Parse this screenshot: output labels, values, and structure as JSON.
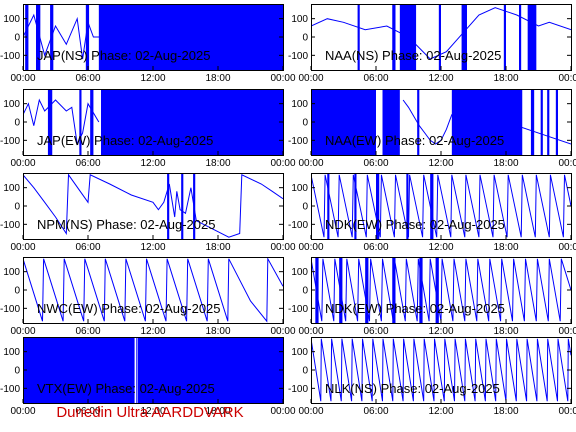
{
  "footer": "Dunedin Ultra AARDDVARK",
  "colors": {
    "trace": "#0000ff",
    "axis": "#000000",
    "footer": "#cc0000"
  },
  "chart_data": [
    {
      "type": "line",
      "title": "JAP(NS) Phase: 02-Aug-2025",
      "x_ticks": [
        "00:00",
        "06:00",
        "12:00",
        "18:00",
        "00:00"
      ],
      "y_ticks": [
        "100",
        "0",
        "-100"
      ],
      "xlim": [
        0,
        24
      ],
      "ylim": [
        -180,
        180
      ],
      "series": [
        {
          "x": [
            0,
            1.0,
            2.0,
            3.0,
            4.0,
            5.0,
            5.5,
            6.0,
            6.5,
            7.0,
            24
          ],
          "y": [
            0,
            120,
            -100,
            60,
            -40,
            100,
            -120,
            80,
            0,
            0,
            0
          ]
        }
      ],
      "filled_ranges": [
        [
          0.2,
          0.5
        ],
        [
          1.2,
          1.6
        ],
        [
          2.5,
          2.8
        ],
        [
          5.8,
          6.1
        ],
        [
          7.0,
          24
        ]
      ]
    },
    {
      "type": "line",
      "title": "NAA(NS) Phase: 02-Aug-2025",
      "x_ticks": [
        "00:00",
        "06:00",
        "12:00",
        "18:00",
        "00:00"
      ],
      "y_ticks": [
        "100",
        "0",
        "-100"
      ],
      "xlim": [
        0,
        24
      ],
      "ylim": [
        -180,
        180
      ],
      "series": [
        {
          "x": [
            0,
            1.5,
            3.0,
            5.0,
            7.0,
            9.0,
            11.0,
            12.5,
            14.0,
            15.5,
            17.0,
            19.0,
            21.0,
            22.0,
            24.0
          ],
          "y": [
            60,
            100,
            80,
            40,
            60,
            0,
            -120,
            -80,
            20,
            120,
            160,
            120,
            60,
            80,
            40
          ]
        }
      ],
      "filled_ranges": [
        [
          4.3,
          4.5
        ],
        [
          7.5,
          7.8
        ],
        [
          8.2,
          9.7
        ],
        [
          11.8,
          12.0
        ],
        [
          13.9,
          14.4
        ],
        [
          17.8,
          18.0
        ],
        [
          19.2,
          19.4
        ],
        [
          20.0,
          20.8
        ]
      ]
    },
    {
      "type": "line",
      "title": "JAP(EW) Phase: 02-Aug-2025",
      "x_ticks": [
        "00:00",
        "06:00",
        "12:00",
        "18:00",
        "00:00"
      ],
      "y_ticks": [
        "100",
        "0",
        "-100"
      ],
      "xlim": [
        0,
        24
      ],
      "ylim": [
        -180,
        180
      ],
      "series": [
        {
          "x": [
            0,
            0.5,
            1.0,
            1.5,
            2.0,
            3.0,
            4.0,
            4.5,
            5.0,
            5.5,
            6.0,
            7.0
          ],
          "y": [
            40,
            100,
            -20,
            120,
            60,
            120,
            60,
            80,
            -120,
            -60,
            100,
            0
          ]
        }
      ],
      "filled_ranges": [
        [
          2.3,
          2.7
        ],
        [
          5.2,
          5.4
        ],
        [
          6.2,
          6.5
        ],
        [
          7.2,
          24
        ]
      ]
    },
    {
      "type": "line",
      "title": "NAA(EW) Phase: 02-Aug-2025",
      "x_ticks": [
        "00:00",
        "06:00",
        "12:00",
        "18:00",
        "00:00"
      ],
      "y_ticks": [
        "100",
        "0",
        "-100"
      ],
      "xlim": [
        0,
        24
      ],
      "ylim": [
        -180,
        180
      ],
      "series": [
        {
          "x": [
            8.5,
            9.0,
            10.0,
            10.5,
            11.0,
            11.5,
            12.0,
            12.5,
            13.0,
            16.0,
            19.0,
            22.0,
            24.0
          ],
          "y": [
            120,
            80,
            -20,
            -60,
            -100,
            -120,
            -100,
            -40,
            40,
            20,
            -20,
            -80,
            -120
          ]
        }
      ],
      "filled_ranges": [
        [
          0,
          6.0
        ],
        [
          6.6,
          8.2
        ],
        [
          9.8,
          10.0
        ],
        [
          13.0,
          19.5
        ],
        [
          20.3,
          20.6
        ],
        [
          21.2,
          21.4
        ],
        [
          21.8,
          22.0
        ],
        [
          22.6,
          22.8
        ]
      ]
    },
    {
      "type": "line",
      "title": "NPM(NS) Phase: 02-Aug-2025",
      "x_ticks": [
        "00:00",
        "06:00",
        "12:00",
        "18:00",
        "00:00"
      ],
      "y_ticks": [
        "100",
        "0",
        "-100"
      ],
      "xlim": [
        0,
        24
      ],
      "ylim": [
        -180,
        180
      ],
      "series": [
        {
          "x": [
            0,
            1.0,
            2.0,
            3.0,
            4.0,
            4.2,
            6.0,
            6.2,
            8.0,
            10.0,
            12.0,
            12.5,
            13.0,
            13.5,
            14.0,
            14.2,
            14.5,
            15.0,
            15.5,
            16.0,
            17.0,
            18.0,
            19.0,
            20.0,
            20.2,
            22.0,
            23.0,
            24.0
          ],
          "y": [
            170,
            100,
            20,
            -60,
            -150,
            170,
            20,
            170,
            120,
            60,
            20,
            -20,
            20,
            120,
            -60,
            80,
            -20,
            -40,
            100,
            -80,
            -110,
            -140,
            -170,
            -150,
            170,
            120,
            80,
            40
          ]
        }
      ],
      "filled_ranges": [
        [
          13.3,
          13.5
        ],
        [
          14.6,
          14.8
        ],
        [
          15.7,
          15.9
        ]
      ]
    },
    {
      "type": "line",
      "title": "NDK(EW) Phase: 02-Aug-2025",
      "x_ticks": [
        "00:00",
        "06:00",
        "12:00",
        "18:00",
        "00:00"
      ],
      "y_ticks": [
        "100",
        "0",
        "-100"
      ],
      "xlim": [
        0,
        24
      ],
      "ylim": [
        -180,
        180
      ],
      "series": [
        {
          "x": [
            0,
            1.2,
            1.3,
            2.5,
            2.6,
            3.8,
            3.9,
            5.1,
            5.2,
            6.4,
            6.5,
            7.7,
            7.8,
            9.0,
            9.1,
            10.3,
            10.4,
            11.6,
            11.7,
            12.9,
            13.0,
            14.2,
            14.3,
            15.5,
            15.6,
            16.8,
            16.9,
            18.1,
            18.2,
            19.4,
            19.5,
            20.7,
            20.8,
            22.0,
            22.1,
            23.3,
            23.4,
            24.0
          ],
          "y": [
            170,
            -170,
            170,
            -170,
            170,
            -170,
            170,
            -170,
            170,
            -170,
            170,
            -170,
            170,
            -170,
            170,
            -170,
            170,
            -170,
            170,
            -170,
            170,
            -170,
            170,
            -170,
            170,
            -170,
            170,
            -170,
            170,
            -170,
            170,
            -170,
            170,
            -170,
            170,
            -170,
            170,
            0
          ]
        }
      ],
      "filled_ranges": [
        [
          1.5,
          1.7
        ],
        [
          4.0,
          4.2
        ],
        [
          6.0,
          6.3
        ],
        [
          8.8,
          9.0
        ],
        [
          11.0,
          11.3
        ]
      ]
    },
    {
      "type": "line",
      "title": "NWC(EW) Phase: 02-Aug-2025",
      "x_ticks": [
        "00:00",
        "06:00",
        "12:00",
        "18:00",
        "00:00"
      ],
      "y_ticks": [
        "100",
        "0",
        "-100"
      ],
      "xlim": [
        0,
        24
      ],
      "ylim": [
        -180,
        180
      ],
      "series": [
        {
          "x": [
            0,
            1.8,
            1.9,
            3.7,
            3.8,
            5.6,
            5.7,
            7.5,
            7.6,
            9.4,
            9.5,
            11.3,
            11.4,
            13.2,
            13.3,
            15.1,
            15.2,
            17.0,
            17.1,
            18.9,
            19.0,
            21.0,
            22.5,
            22.6,
            24.0
          ],
          "y": [
            170,
            -170,
            170,
            -170,
            170,
            -170,
            170,
            -170,
            170,
            -170,
            170,
            -170,
            170,
            -170,
            170,
            -170,
            170,
            -170,
            170,
            -170,
            170,
            -60,
            -170,
            170,
            20
          ]
        }
      ],
      "filled_ranges": []
    },
    {
      "type": "line",
      "title": "NDK(EW) Phase: 02-Aug-2025",
      "x_ticks": [
        "00:00",
        "06:00",
        "12:00",
        "18:00",
        "00:00"
      ],
      "y_ticks": [
        "100",
        "0",
        "-100"
      ],
      "xlim": [
        0,
        24
      ],
      "ylim": [
        -180,
        180
      ],
      "series": [
        {
          "x": [
            0,
            1.0,
            1.1,
            2.1,
            2.2,
            3.2,
            3.3,
            4.3,
            4.4,
            5.4,
            5.5,
            6.5,
            6.6,
            7.6,
            7.7,
            8.7,
            8.8,
            9.8,
            9.9,
            10.9,
            11.0,
            12.0,
            12.1,
            13.1,
            13.2,
            14.2,
            14.3,
            15.3,
            15.4,
            16.4,
            16.5,
            17.5,
            17.6,
            18.6,
            18.7,
            19.7,
            19.8,
            20.8,
            20.9,
            21.9,
            22.0,
            23.0,
            23.1,
            24.0
          ],
          "y": [
            170,
            -170,
            170,
            -170,
            170,
            -170,
            170,
            -170,
            170,
            -170,
            170,
            -170,
            170,
            -170,
            170,
            -170,
            170,
            -170,
            170,
            -170,
            170,
            -170,
            170,
            -170,
            170,
            -170,
            170,
            -170,
            170,
            -170,
            170,
            -170,
            170,
            -170,
            170,
            -170,
            170,
            -170,
            170,
            -170,
            170,
            -170,
            170,
            0
          ]
        }
      ],
      "filled_ranges": [
        [
          0.4,
          0.7
        ],
        [
          2.6,
          2.9
        ],
        [
          5.0,
          5.3
        ],
        [
          7.5,
          7.8
        ],
        [
          10.0,
          10.3
        ],
        [
          11.5,
          11.8
        ]
      ]
    },
    {
      "type": "line",
      "title": "VTX(EW) Phase: 02-Aug-2025",
      "x_ticks": [
        "00:00",
        "06:00",
        "12:00",
        "18:00",
        "00:00"
      ],
      "y_ticks": [
        "100",
        "0",
        "-100"
      ],
      "xlim": [
        0,
        24
      ],
      "ylim": [
        -180,
        180
      ],
      "series": [
        {
          "x": [
            10.5,
            10.5
          ],
          "y": [
            -180,
            180
          ]
        }
      ],
      "filled_ranges": [
        [
          0,
          10.3
        ],
        [
          10.6,
          24
        ]
      ]
    },
    {
      "type": "line",
      "title": "NLK(NS) Phase: 02-Aug-2025",
      "x_ticks": [
        "00:00",
        "06:00",
        "12:00",
        "18:00",
        "00:00"
      ],
      "y_ticks": [
        "100",
        "0",
        "-100"
      ],
      "xlim": [
        0,
        24
      ],
      "ylim": [
        -180,
        180
      ],
      "series": [
        {
          "x": [
            0,
            0.9,
            0.95,
            1.85,
            1.9,
            2.8,
            2.85,
            3.75,
            3.8,
            4.7,
            4.75,
            5.65,
            5.7,
            6.6,
            6.65,
            7.55,
            7.6,
            8.5,
            8.55,
            9.45,
            9.5,
            10.4,
            10.45,
            11.35,
            11.4,
            12.3,
            12.35,
            13.25,
            13.3,
            14.2,
            14.25,
            15.15,
            15.2,
            16.1,
            16.15,
            17.05,
            17.1,
            18.0,
            18.05,
            18.95,
            19.0,
            19.9,
            19.95,
            20.85,
            20.9,
            21.8,
            21.85,
            22.75,
            22.8,
            23.7,
            23.75,
            24.0
          ],
          "y": [
            170,
            -170,
            170,
            -170,
            170,
            -170,
            170,
            -170,
            170,
            -170,
            170,
            -170,
            170,
            -170,
            170,
            -170,
            170,
            -170,
            170,
            -170,
            170,
            -170,
            170,
            -170,
            170,
            -170,
            170,
            -170,
            170,
            -170,
            170,
            -170,
            170,
            -170,
            170,
            -170,
            170,
            -170,
            170,
            -170,
            170,
            -170,
            170,
            -170,
            170,
            -170,
            170,
            -170,
            170,
            -170,
            170,
            80
          ]
        }
      ],
      "filled_ranges": []
    }
  ]
}
